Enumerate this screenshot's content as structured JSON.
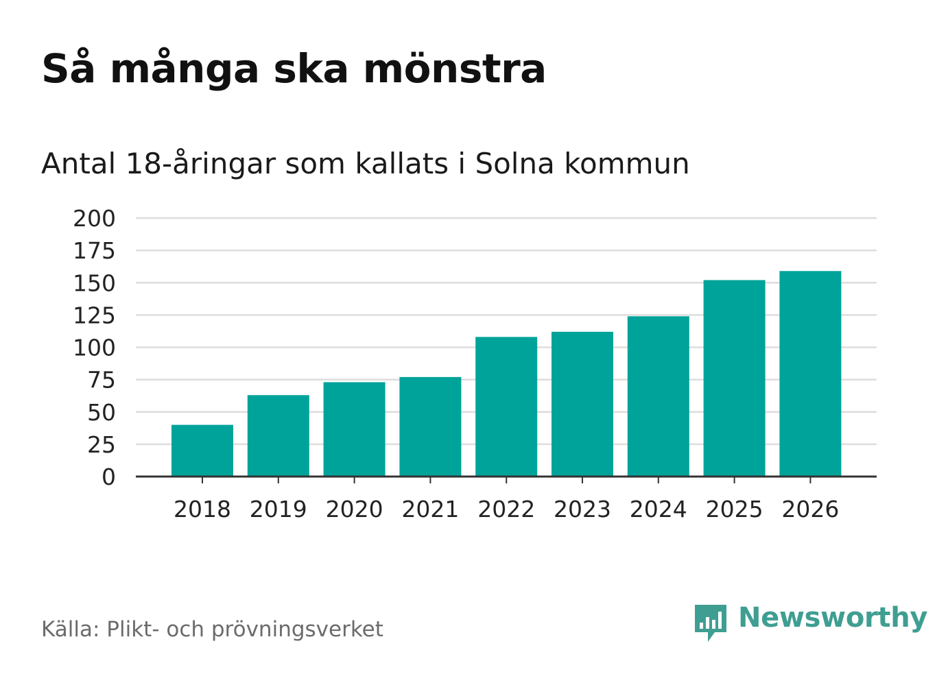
{
  "header": {
    "title": "Så många ska mönstra",
    "subtitle": "Antal 18-åringar som kallats i Solna kommun"
  },
  "footer": {
    "source": "Källa: Plikt- och prövningsverket",
    "brand": "Newsworthy"
  },
  "colors": {
    "bar": "#00a39a",
    "grid": "#dddddd",
    "axis": "#333333",
    "brand": "#3f9e92"
  },
  "chart_data": {
    "type": "bar",
    "title": "Så många ska mönstra",
    "subtitle": "Antal 18-åringar som kallats i Solna kommun",
    "xlabel": "",
    "ylabel": "",
    "categories": [
      "2018",
      "2019",
      "2020",
      "2021",
      "2022",
      "2023",
      "2024",
      "2025",
      "2026"
    ],
    "values": [
      40,
      63,
      73,
      77,
      108,
      112,
      124,
      152,
      159
    ],
    "ylim": [
      0,
      200
    ],
    "yticks": [
      "0",
      "25",
      "50",
      "75",
      "100",
      "125",
      "150",
      "175",
      "200"
    ],
    "grid": true,
    "legend": "none"
  }
}
